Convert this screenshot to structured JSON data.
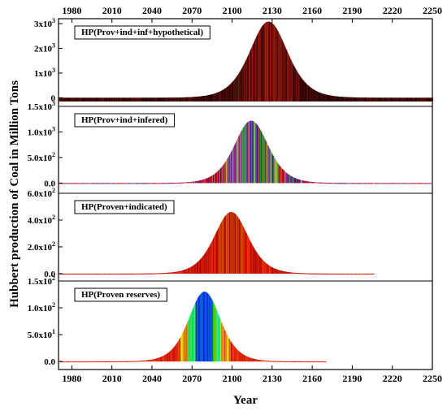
{
  "chart_data": {
    "type": "area",
    "xlabel": "Year",
    "ylabel": "Hubbert production of Coal in Million Tons",
    "xlim": [
      1970,
      2250
    ],
    "x_ticks": [
      {
        "value": 1980,
        "label": "1980"
      },
      {
        "value": 2010,
        "label": "2010"
      },
      {
        "value": 2040,
        "label": "2040"
      },
      {
        "value": 2070,
        "label": "2070"
      },
      {
        "value": 2100,
        "label": "2100"
      },
      {
        "value": 2130,
        "label": "2130"
      },
      {
        "value": 2160,
        "label": "2160"
      },
      {
        "value": 2190,
        "label": "2190"
      },
      {
        "value": 2220,
        "label": "2220"
      },
      {
        "value": 2250,
        "label": "2250"
      }
    ],
    "grid": false,
    "panels": [
      {
        "legend": "HP(Prov+ind+inf+hypothetical)",
        "ylim": [
          -350,
          3200
        ],
        "y_ticks": [
          {
            "value": 0,
            "mant": "0",
            "exp": ""
          },
          {
            "value": 1000,
            "mant": "1x10",
            "exp": "3"
          },
          {
            "value": 2000,
            "mant": "2x10",
            "exp": "3"
          },
          {
            "value": 3000,
            "mant": "3x10",
            "exp": "3"
          }
        ],
        "peak_year": 2127,
        "peak_value": 3080,
        "width_years": 19,
        "baseline": -150,
        "end_year": 2250,
        "color_scheme": "dark-red"
      },
      {
        "legend": "HP(Prov+ind+infered)",
        "ylim": [
          -200,
          1500
        ],
        "y_ticks": [
          {
            "value": 0,
            "mant": "0.0",
            "exp": ""
          },
          {
            "value": 500,
            "mant": "5.0x10",
            "exp": "2"
          },
          {
            "value": 1000,
            "mant": "1.0x10",
            "exp": "3"
          },
          {
            "value": 1500,
            "mant": "1.5x10",
            "exp": "3"
          }
        ],
        "peak_year": 2114,
        "peak_value": 1220,
        "width_years": 17,
        "baseline": 0,
        "end_year": 2250,
        "color_scheme": "multicolor"
      },
      {
        "legend": "HP(Proven+indicated)",
        "ylim": [
          -55,
          600
        ],
        "y_ticks": [
          {
            "value": 0,
            "mant": "0.0",
            "exp": ""
          },
          {
            "value": 200,
            "mant": "2.0x10",
            "exp": "2"
          },
          {
            "value": 400,
            "mant": "4.0x10",
            "exp": "2"
          },
          {
            "value": 600,
            "mant": "6.0x10",
            "exp": "2"
          }
        ],
        "peak_year": 2099,
        "peak_value": 460,
        "width_years": 17,
        "baseline": 0,
        "end_year": 2206,
        "color_scheme": "red-orange"
      },
      {
        "legend": "HP(Proven reserves)",
        "ylim": [
          -15,
          150
        ],
        "y_ticks": [
          {
            "value": 0,
            "mant": "0.0",
            "exp": ""
          },
          {
            "value": 50,
            "mant": "5.0x10",
            "exp": "1"
          },
          {
            "value": 100,
            "mant": "1.0x10",
            "exp": "2"
          },
          {
            "value": 150,
            "mant": "1.5x10",
            "exp": "2"
          }
        ],
        "peak_year": 2079,
        "peak_value": 130,
        "width_years": 16,
        "baseline": 0,
        "end_year": 2170,
        "color_scheme": "rainbow"
      }
    ]
  }
}
